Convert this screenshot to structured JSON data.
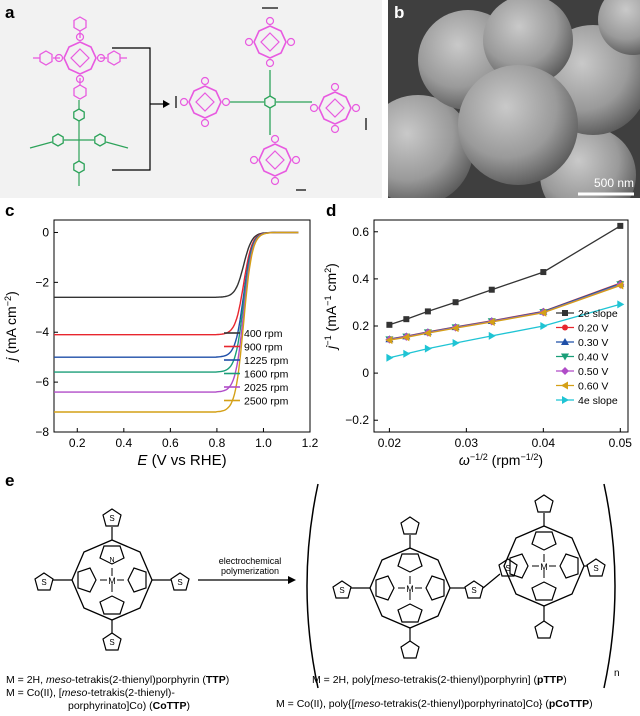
{
  "panels": {
    "a": {
      "label": "a"
    },
    "b": {
      "label": "b",
      "scale_bar": "500 nm"
    },
    "c": {
      "label": "c"
    },
    "d": {
      "label": "d"
    },
    "e": {
      "label": "e"
    }
  },
  "chart_data": [
    {
      "type": "line",
      "panel": "c",
      "xlabel_var": "E",
      "xlabel_rest": " (V vs RHE)",
      "ylabel_var": "j",
      "ylabel_rest": " (mA cm",
      "ylabel_sup": "−2",
      "ylabel_end": ")",
      "xlim": [
        0.1,
        1.2
      ],
      "ylim": [
        -8,
        0.5
      ],
      "xticks": [
        "0.2",
        "0.4",
        "0.6",
        "0.8",
        "1.0",
        "1.2"
      ],
      "yticks": [
        "0",
        "−2",
        "−4",
        "−6",
        "−8"
      ],
      "legend_position": "bottom-right",
      "series": [
        {
          "name": "400 rpm",
          "color": "#333333",
          "plateau": -2.6
        },
        {
          "name": "900 rpm",
          "color": "#e8262e",
          "plateau": -4.1
        },
        {
          "name": "1225 rpm",
          "color": "#1f4fa8",
          "plateau": -5.0
        },
        {
          "name": "1600 rpm",
          "color": "#1a9e78",
          "plateau": -5.6
        },
        {
          "name": "2025 rpm",
          "color": "#b04cc8",
          "plateau": -6.4
        },
        {
          "name": "2500 rpm",
          "color": "#d4a017",
          "plateau": -7.2
        }
      ],
      "onset_potential": 0.86,
      "saturation_potential": 0.97
    },
    {
      "type": "line",
      "panel": "d",
      "xlabel_var": "ω",
      "xlabel_sup": "−1/2",
      "xlabel_rest": " (rpm",
      "xlabel_sup2": "−1/2",
      "xlabel_end": ")",
      "ylabel_var": "j",
      "ylabel_sup": "−1",
      "ylabel_rest": " (mA",
      "ylabel_sup2": "−1",
      "ylabel_mid": " cm",
      "ylabel_sup3": "2",
      "ylabel_end": ")",
      "xlim": [
        0.018,
        0.051
      ],
      "ylim": [
        -0.25,
        0.65
      ],
      "xticks": [
        "0.02",
        "0.03",
        "0.04",
        "0.05"
      ],
      "xtick_values": [
        0.02,
        0.03,
        0.04,
        0.05
      ],
      "yticks": [
        "0.6",
        "0.4",
        "0.2",
        "0",
        "−0.2"
      ],
      "ytick_values": [
        0.6,
        0.4,
        0.2,
        0,
        -0.2
      ],
      "legend_position": "right",
      "x": [
        0.02,
        0.0222,
        0.025,
        0.0286,
        0.0333,
        0.04,
        0.05
      ],
      "series": [
        {
          "name": "2e slope",
          "color": "#333333",
          "marker": "square",
          "values": [
            0.205,
            0.229,
            0.262,
            0.301,
            0.354,
            0.429,
            0.625
          ]
        },
        {
          "name": "0.20 V",
          "color": "#e8262e",
          "marker": "circle",
          "values": [
            0.145,
            0.157,
            0.175,
            0.196,
            0.222,
            0.262,
            0.382
          ]
        },
        {
          "name": "0.30 V",
          "color": "#1f4fa8",
          "marker": "triangle-up",
          "values": [
            0.144,
            0.156,
            0.174,
            0.195,
            0.221,
            0.261,
            0.38
          ]
        },
        {
          "name": "0.40 V",
          "color": "#1a9e78",
          "marker": "triangle-down",
          "values": [
            0.143,
            0.155,
            0.173,
            0.194,
            0.22,
            0.259,
            0.377
          ]
        },
        {
          "name": "0.50 V",
          "color": "#b04cc8",
          "marker": "diamond",
          "values": [
            0.142,
            0.154,
            0.172,
            0.193,
            0.219,
            0.258,
            0.375
          ]
        },
        {
          "name": "0.60 V",
          "color": "#d4a017",
          "marker": "triangle-left",
          "values": [
            0.14,
            0.152,
            0.17,
            0.191,
            0.217,
            0.256,
            0.372
          ]
        },
        {
          "name": "4e slope",
          "color": "#1fc4d4",
          "marker": "triangle-right",
          "values": [
            0.065,
            0.082,
            0.104,
            0.128,
            0.158,
            0.2,
            0.292
          ]
        }
      ]
    }
  ],
  "scheme": {
    "arrow_top": "electrochemical",
    "arrow_bottom": "polymerization",
    "n_label": "n",
    "metal_label": "M",
    "s_label": "S",
    "n_atom": "N",
    "left_caption": {
      "l1_a": "M = 2H, ",
      "l1_i": "meso",
      "l1_b": "-tetrakis(2-thienyl)porphyrin (",
      "l1_bold": "TTP",
      "l1_c": ")",
      "l2_a": "M = Co(II), [",
      "l2_i": "meso",
      "l2_b": "-tetrakis(2-thienyl)-",
      "l3_a": "porphyrinato]Co) (",
      "l3_bold": "CoTTP",
      "l3_b": ")"
    },
    "right_caption": {
      "l1_a": "M = 2H, poly[",
      "l1_i": "meso",
      "l1_b": "-tetrakis(2-thienyl)porphyrin] (",
      "l1_bold": "pTTP",
      "l1_c": ")",
      "l2_a": "M = Co(II), poly{[",
      "l2_i": "meso",
      "l2_b": "-tetrakis(2-thienyl)porphyrinato]Co} (",
      "l2_bold": "pCoTTP",
      "l2_c": ")"
    }
  },
  "colors": {
    "porphyrin": "#e85ae0",
    "linker": "#2da35a",
    "sem_background": "#3f3f3f"
  }
}
